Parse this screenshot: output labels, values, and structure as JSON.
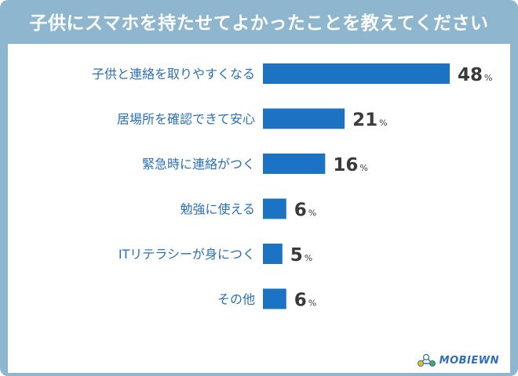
{
  "title": "子供にスマホを持たせてよかったことを教えてください",
  "logo": {
    "text": "MOBIEWN",
    "icon": "molecule-logo-icon"
  },
  "colors": {
    "frame": "#8fb6cf",
    "bar": "#1c72c3",
    "label": "#2a6fb8",
    "value": "#3a3a3a"
  },
  "chart_data": {
    "type": "bar",
    "orientation": "horizontal",
    "categories": [
      "子供と連絡を取りやすくなる",
      "居場所を確認できて安心",
      "緊急時に連絡がつく",
      "勉強に使える",
      "ITリテラシーが身につく",
      "その他"
    ],
    "values": [
      48,
      21,
      16,
      6,
      5,
      6
    ],
    "unit": "%",
    "xlim": [
      0,
      48
    ],
    "grid": false,
    "legend": "none"
  }
}
